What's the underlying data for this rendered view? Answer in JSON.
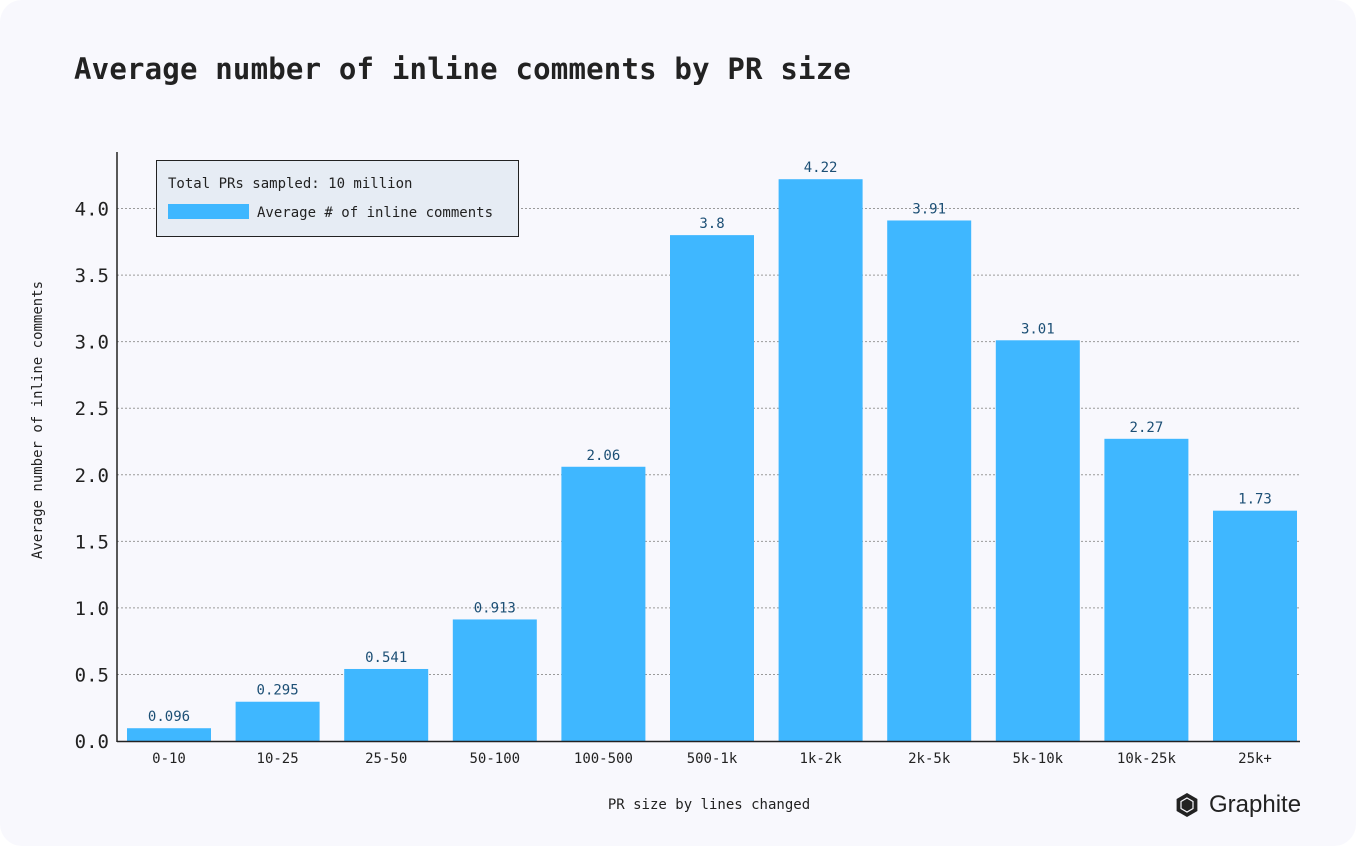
{
  "title": "Average number of inline comments by PR size",
  "brand": {
    "name": "Graphite",
    "icon": "graphite-logo-icon"
  },
  "colors": {
    "bar": "#3fb7ff",
    "value_label": "#1c4f75",
    "axis": "#222222",
    "grid": "#9a9a9a",
    "legend_bg": "#e6ecf4",
    "background": "#f8f8fd"
  },
  "chart_data": {
    "type": "bar",
    "categories": [
      "0-10",
      "10-25",
      "25-50",
      "50-100",
      "100-500",
      "500-1k",
      "1k-2k",
      "2k-5k",
      "5k-10k",
      "10k-25k",
      "25k+"
    ],
    "series": [
      {
        "name": "Average # of inline comments",
        "values": [
          0.096,
          0.295,
          0.541,
          0.913,
          2.06,
          3.8,
          4.22,
          3.91,
          3.01,
          2.27,
          1.73
        ],
        "labels": [
          "0.096",
          "0.295",
          "0.541",
          "0.913",
          "2.06",
          "3.8",
          "4.22",
          "3.91",
          "3.01",
          "2.27",
          "1.73"
        ]
      }
    ],
    "xlabel": "PR size by lines changed",
    "ylabel": "Average number of inline comments",
    "ylim": [
      0,
      4.4
    ],
    "yticks": [
      0,
      0.5,
      1,
      1.5,
      2,
      2.5,
      3,
      3.5,
      4
    ],
    "ytick_labels": [
      "0.0",
      "0.5",
      "1.0",
      "1.5",
      "2.0",
      "2.5",
      "3.0",
      "3.5",
      "4.0"
    ],
    "grid": "horizontal dotted",
    "legend_placement": "top-left",
    "legend_note": "Total PRs sampled: 10 million"
  }
}
